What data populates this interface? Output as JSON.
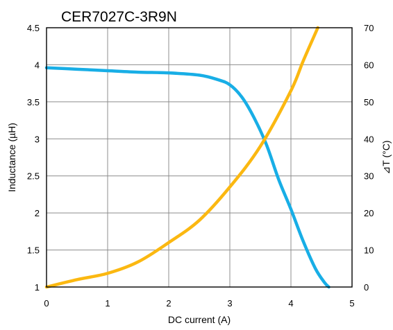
{
  "chart_data": {
    "type": "line",
    "title": "CER7027C-3R9N",
    "xlabel": "DC current (A)",
    "ylabel_left": "Inductance (µH)",
    "ylabel_right": "⊿T (°C)",
    "xlim": [
      0,
      5
    ],
    "ylim_left": [
      1,
      4.5
    ],
    "ylim_right": [
      0,
      70
    ],
    "x_ticks": [
      "0",
      "1",
      "2",
      "3",
      "4",
      "5"
    ],
    "y_left_ticks": [
      "1",
      "1.5",
      "2",
      "2.5",
      "3",
      "3.5",
      "4",
      "4.5"
    ],
    "y_right_ticks": [
      "0",
      "10",
      "20",
      "30",
      "40",
      "50",
      "60",
      "70"
    ],
    "grid": true,
    "legend": "none",
    "series": [
      {
        "axis": "left",
        "color": "#18aee6",
        "points": [
          [
            0,
            3.96
          ],
          [
            0.5,
            3.94
          ],
          [
            1.0,
            3.92
          ],
          [
            1.5,
            3.9
          ],
          [
            2.0,
            3.89
          ],
          [
            2.5,
            3.86
          ],
          [
            2.8,
            3.8
          ],
          [
            3.0,
            3.73
          ],
          [
            3.2,
            3.56
          ],
          [
            3.4,
            3.28
          ],
          [
            3.6,
            2.92
          ],
          [
            3.8,
            2.45
          ],
          [
            4.0,
            2.05
          ],
          [
            4.2,
            1.62
          ],
          [
            4.4,
            1.25
          ],
          [
            4.55,
            1.06
          ],
          [
            4.62,
            1.0
          ]
        ]
      },
      {
        "axis": "right",
        "color": "#fbb811",
        "points": [
          [
            0,
            0
          ],
          [
            0.5,
            2
          ],
          [
            1.0,
            3.7
          ],
          [
            1.5,
            6.8
          ],
          [
            2.0,
            12
          ],
          [
            2.5,
            18
          ],
          [
            3.0,
            27
          ],
          [
            3.5,
            38
          ],
          [
            4.0,
            53
          ],
          [
            4.2,
            61
          ],
          [
            4.44,
            70
          ]
        ]
      }
    ]
  }
}
